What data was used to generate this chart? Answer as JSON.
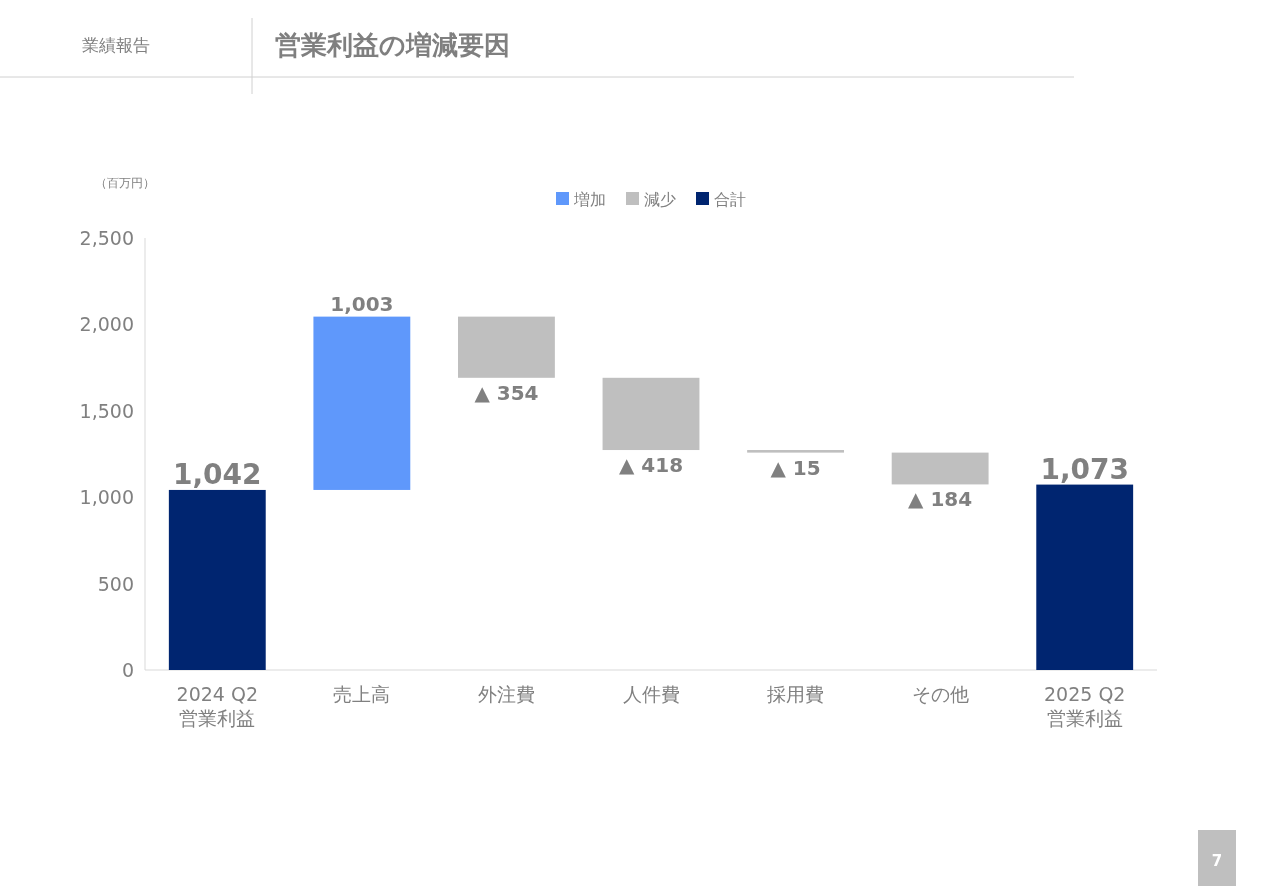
{
  "chart_data": {
    "type": "bar",
    "title": "営業利益の増減要因",
    "ylabel": "（百万円）",
    "annotations": [
      "業績報告",
      "7"
    ],
    "categories": [
      "2024 Q2\n営業利益",
      "売上高",
      "外注費",
      "人件費",
      "採用費",
      "その他",
      "2025 Q2\n営業利益"
    ],
    "series": [
      {
        "name": "増加",
        "color": "#5f98fb",
        "values": [
          null,
          1003,
          null,
          null,
          null,
          null,
          null
        ],
        "base": [
          null,
          1042,
          null,
          null,
          null,
          null,
          null
        ],
        "value_labels": [
          null,
          "1,003",
          null,
          null,
          null,
          null,
          null
        ]
      },
      {
        "name": "減少",
        "color": "#bfbfbf",
        "values": [
          null,
          null,
          354,
          418,
          15,
          184,
          null
        ],
        "base": [
          null,
          null,
          1691,
          1273,
          1258,
          1074,
          null
        ],
        "value_labels": [
          null,
          null,
          "▲ 354",
          "▲ 418",
          "▲ 15",
          "▲ 184",
          null
        ]
      },
      {
        "name": "合計",
        "color": "#002570",
        "values": [
          1042,
          null,
          null,
          null,
          null,
          null,
          1073
        ],
        "value_labels": [
          "1,042",
          null,
          null,
          null,
          null,
          null,
          "1,073"
        ]
      }
    ],
    "ylim": [
      0,
      2500
    ],
    "yticks": [
      0,
      500,
      {
        "value": 1000,
        "label": "1,000"
      },
      {
        "value": 1500,
        "label": "1,500"
      },
      {
        "value": 2000,
        "label": "2,000"
      },
      {
        "value": 2500,
        "label": "2,500"
      }
    ],
    "grid": false,
    "legend": "top"
  }
}
